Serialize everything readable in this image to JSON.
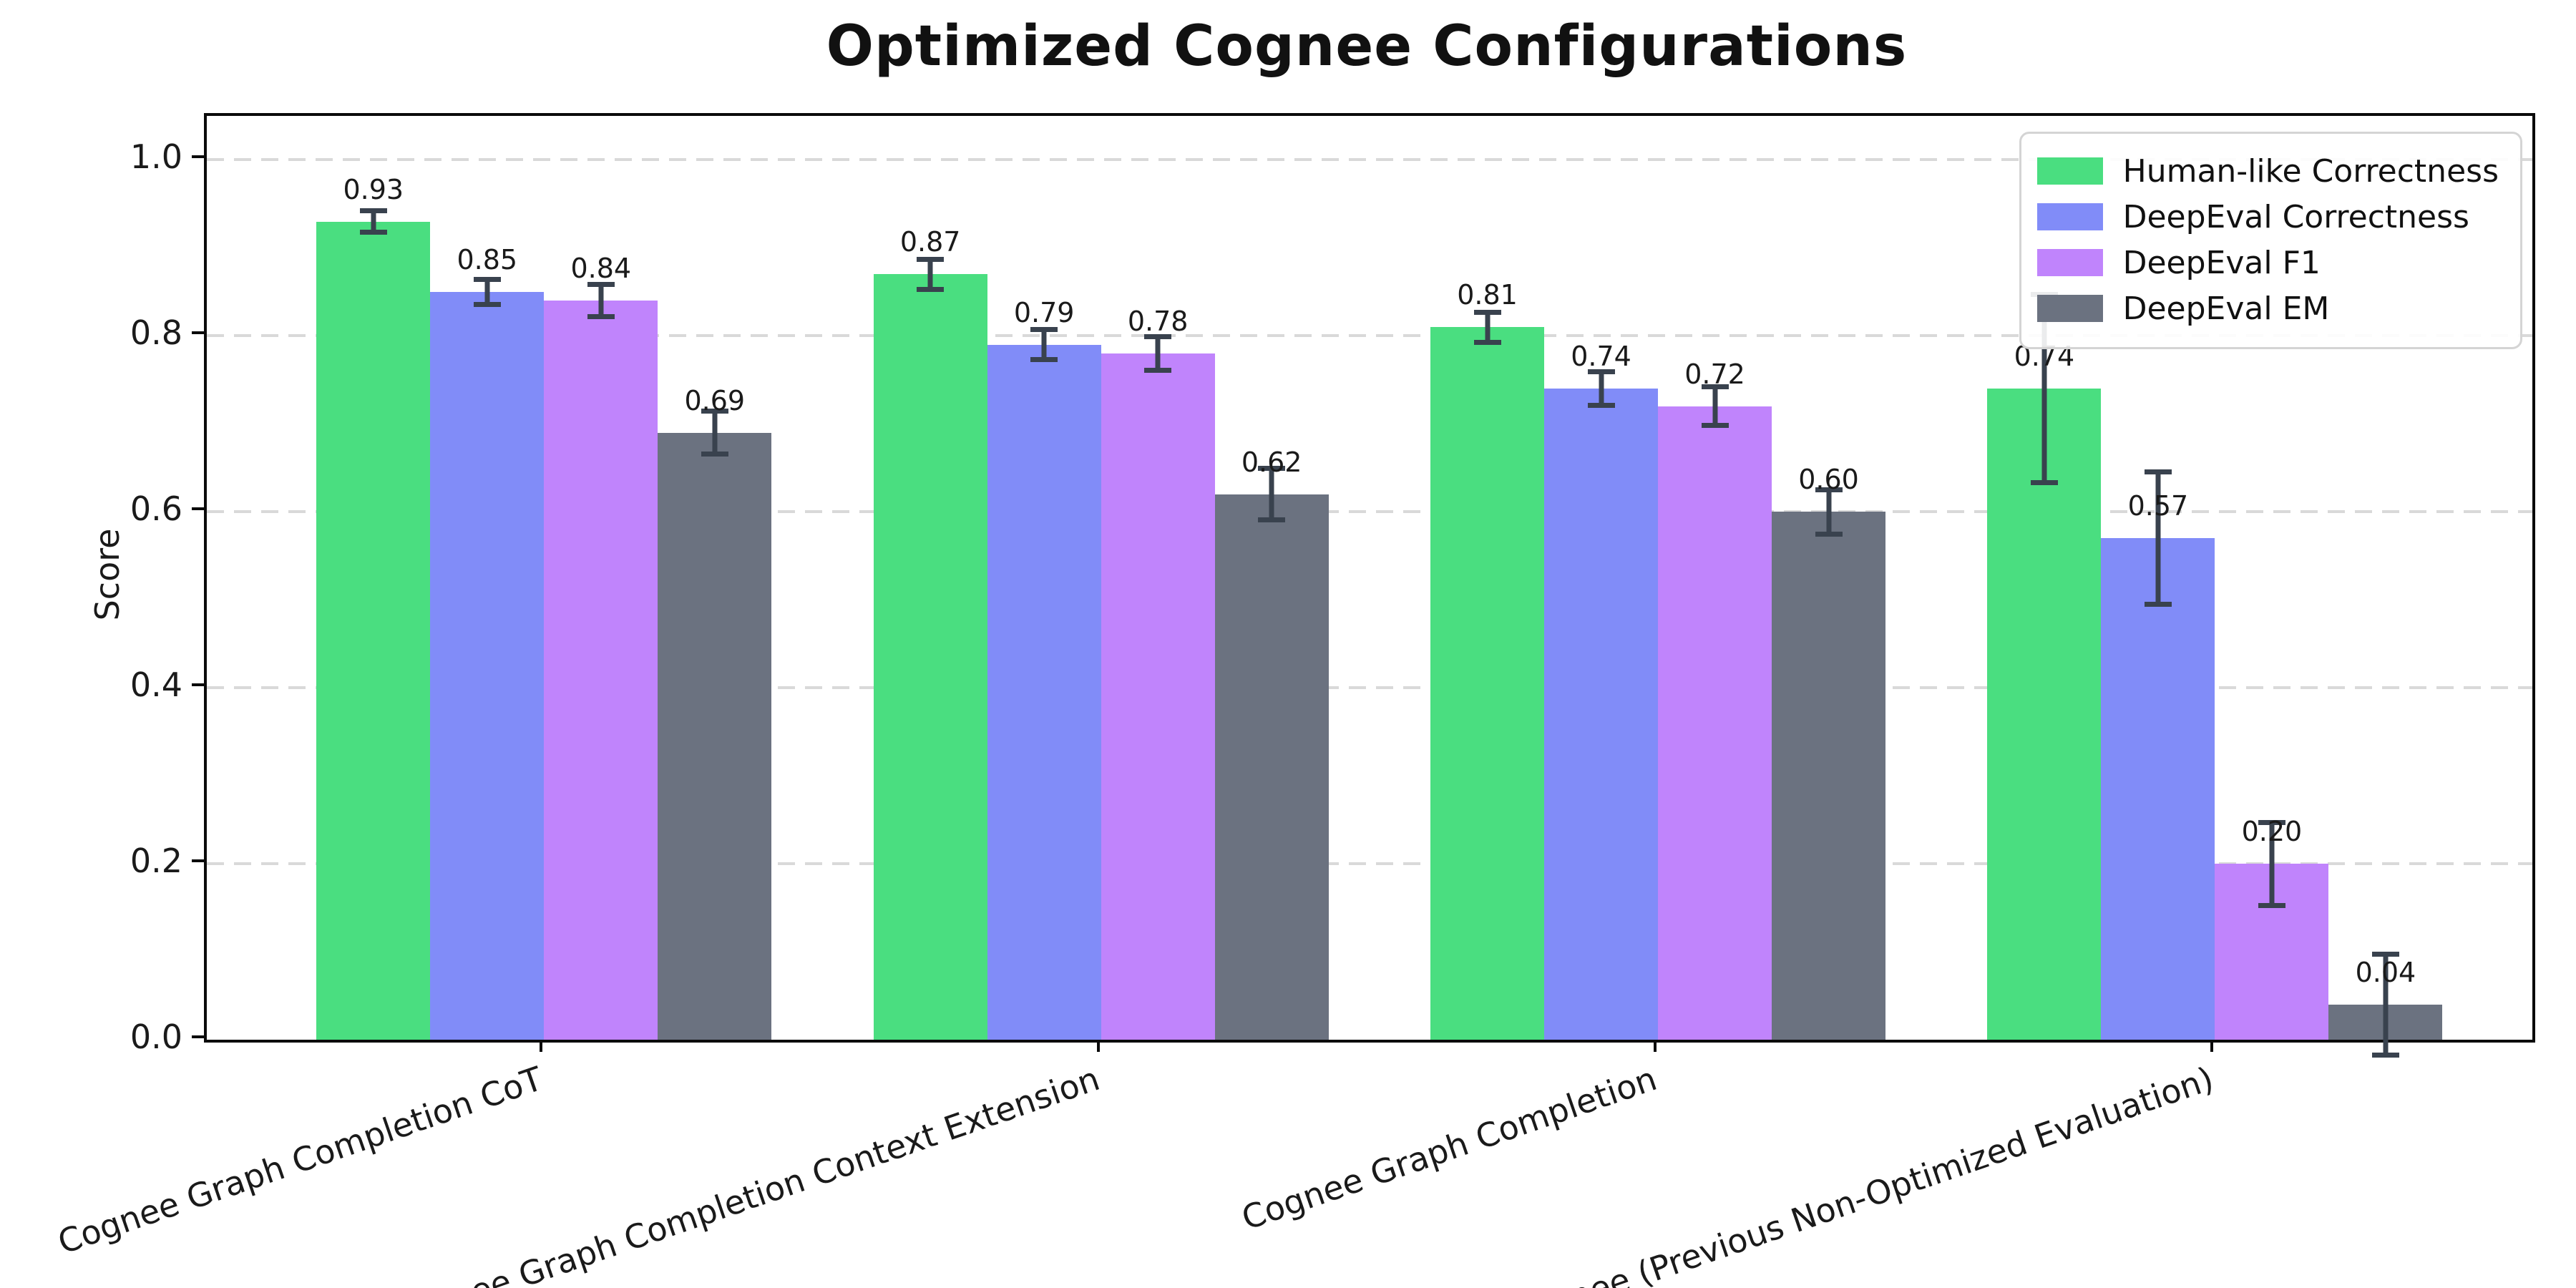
{
  "chart_data": {
    "type": "bar",
    "title": "Optimized Cognee Configurations",
    "xlabel": "",
    "ylabel": "Score",
    "ylim": [
      0,
      1.05
    ],
    "yticks": [
      0.0,
      0.2,
      0.4,
      0.6,
      0.8,
      1.0
    ],
    "grid": {
      "axis": "y",
      "style": "dashed",
      "color": "#d9d9d9"
    },
    "legend_position": "upper right",
    "errorbar_color": "#39424e",
    "categories": [
      "Cognee Graph Completion CoT",
      "Cognee Graph Completion Context Extension",
      "Cognee Graph Completion",
      "Cognee (Previous Non-Optimized Evaluation)"
    ],
    "series": [
      {
        "name": "Human-like Correctness",
        "color": "#4ade80",
        "values": [
          0.93,
          0.87,
          0.81,
          0.74
        ],
        "errors": [
          0.015,
          0.02,
          0.02,
          0.11
        ]
      },
      {
        "name": "DeepEval Correctness",
        "color": "#818cf8",
        "values": [
          0.85,
          0.79,
          0.74,
          0.57
        ],
        "errors": [
          0.017,
          0.02,
          0.022,
          0.078
        ]
      },
      {
        "name": "DeepEval F1",
        "color": "#c084fc",
        "values": [
          0.84,
          0.78,
          0.72,
          0.2
        ],
        "errors": [
          0.021,
          0.022,
          0.025,
          0.05
        ]
      },
      {
        "name": "DeepEval EM",
        "color": "#6b7280",
        "values": [
          0.69,
          0.62,
          0.6,
          0.04
        ],
        "errors": [
          0.027,
          0.032,
          0.028,
          0.06
        ]
      }
    ],
    "bar_labels": [
      [
        "0.93",
        "0.87",
        "0.81",
        "0.74"
      ],
      [
        "0.85",
        "0.79",
        "0.74",
        "0.57"
      ],
      [
        "0.84",
        "0.78",
        "0.72",
        "0.20"
      ],
      [
        "0.69",
        "0.62",
        "0.60",
        "0.04"
      ]
    ]
  }
}
